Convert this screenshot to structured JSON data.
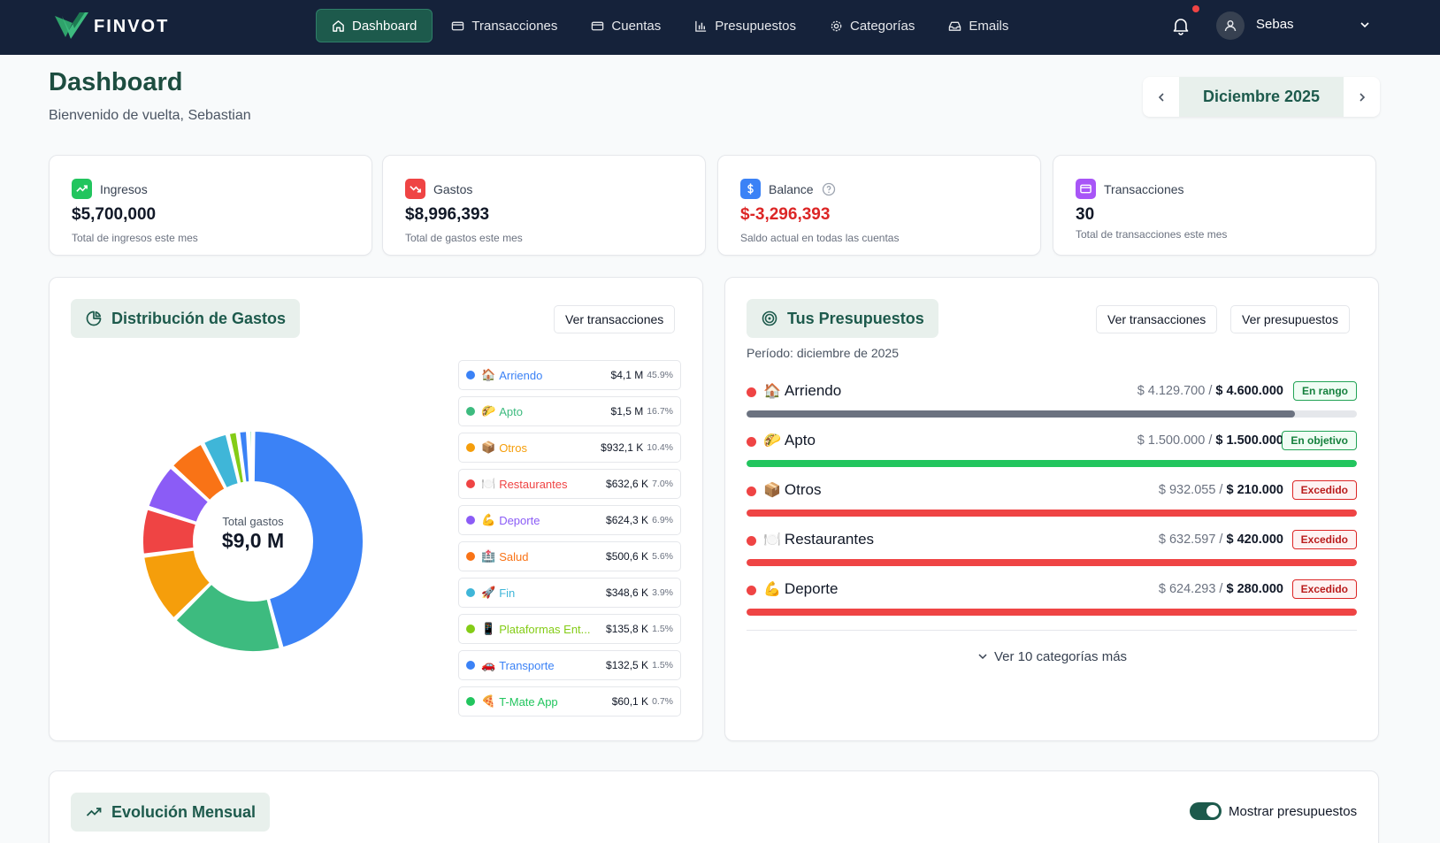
{
  "brand": {
    "name": "FINVOT"
  },
  "nav": {
    "items": [
      {
        "label": "Dashboard",
        "icon": "home-icon",
        "active": true
      },
      {
        "label": "Transacciones",
        "icon": "card-icon"
      },
      {
        "label": "Cuentas",
        "icon": "wallet-icon"
      },
      {
        "label": "Presupuestos",
        "icon": "bar-chart-icon"
      },
      {
        "label": "Categorías",
        "icon": "gear-icon"
      },
      {
        "label": "Emails",
        "icon": "inbox-icon"
      }
    ],
    "user": "Sebas"
  },
  "header": {
    "title": "Dashboard",
    "subtitle": "Bienvenido de vuelta, Sebastian",
    "month": "Diciembre 2025"
  },
  "stats": [
    {
      "label": "Ingresos",
      "value": "$5,700,000",
      "desc": "Total de ingresos este mes",
      "color": "#22c55e",
      "icon": "trending-up-icon"
    },
    {
      "label": "Gastos",
      "value": "$8,996,393",
      "desc": "Total de gastos este mes",
      "color": "#ef4444",
      "icon": "trending-down-icon"
    },
    {
      "label": "Balance",
      "value": "$-3,296,393",
      "desc": "Saldo actual en todas las cuentas",
      "color": "#3b82f6",
      "icon": "dollar-icon",
      "value_color": "#dc2626"
    },
    {
      "label": "Transacciones",
      "value": "30",
      "desc": "Total de transacciones este mes",
      "color": "#a855f7",
      "icon": "card-icon"
    }
  ],
  "distribution": {
    "title": "Distribución de Gastos",
    "button": "Ver transacciones",
    "center_label": "Total gastos",
    "center_value": "$9,0 M",
    "items": [
      {
        "emoji": "🏠",
        "name": "Arriendo",
        "value": "$4,1 M",
        "pct": "45.9%",
        "share": 45.9,
        "color": "#3b82f6"
      },
      {
        "emoji": "🌮",
        "name": "Apto",
        "value": "$1,5 M",
        "pct": "16.7%",
        "share": 16.7,
        "color": "#3dbb7f"
      },
      {
        "emoji": "📦",
        "name": "Otros",
        "value": "$932,1 K",
        "pct": "10.4%",
        "share": 10.4,
        "color": "#f59e0b"
      },
      {
        "emoji": "🍽️",
        "name": "Restaurantes",
        "value": "$632,6 K",
        "pct": "7.0%",
        "share": 7.0,
        "color": "#ef4444"
      },
      {
        "emoji": "💪",
        "name": "Deporte",
        "value": "$624,3 K",
        "pct": "6.9%",
        "share": 6.9,
        "color": "#8b5cf6"
      },
      {
        "emoji": "🏥",
        "name": "Salud",
        "value": "$500,6 K",
        "pct": "5.6%",
        "share": 5.6,
        "color": "#f97316"
      },
      {
        "emoji": "🚀",
        "name": "Fin",
        "value": "$348,6 K",
        "pct": "3.9%",
        "share": 3.9,
        "color": "#3fb6d8"
      },
      {
        "emoji": "📱",
        "name": "Plataformas Ent...",
        "value": "$135,8 K",
        "pct": "1.5%",
        "share": 1.5,
        "color": "#84cc16"
      },
      {
        "emoji": "🚗",
        "name": "Transporte",
        "value": "$132,5 K",
        "pct": "1.5%",
        "share": 1.5,
        "color": "#3b82f6"
      },
      {
        "emoji": "🍕",
        "name": "T-Mate App",
        "value": "$60,1 K",
        "pct": "0.7%",
        "share": 0.7,
        "color": "#22c55e"
      }
    ]
  },
  "budgets": {
    "title": "Tus Presupuestos",
    "btn_transactions": "Ver transacciones",
    "btn_budgets": "Ver presupuestos",
    "period": "Período: diciembre de 2025",
    "items": [
      {
        "emoji": "🏠",
        "name": "Arriendo",
        "spent": "$ 4.129.700",
        "limit": "$ 4.600.000",
        "status": "En rango",
        "tag": "green",
        "progress": 0.898,
        "bar_color": "#6b7280"
      },
      {
        "emoji": "🌮",
        "name": "Apto",
        "spent": "$ 1.500.000",
        "limit": "$ 1.500.000",
        "status": "En objetivo",
        "tag": "green",
        "progress": 1.0,
        "bar_color": "#22c55e"
      },
      {
        "emoji": "📦",
        "name": "Otros",
        "spent": "$ 932.055",
        "limit": "$ 210.000",
        "status": "Excedido",
        "tag": "red",
        "progress": 1.0,
        "bar_color": "#ef4444"
      },
      {
        "emoji": "🍽️",
        "name": "Restaurantes",
        "spent": "$ 632.597",
        "limit": "$ 420.000",
        "status": "Excedido",
        "tag": "red",
        "progress": 1.0,
        "bar_color": "#ef4444"
      },
      {
        "emoji": "💪",
        "name": "Deporte",
        "spent": "$ 624.293",
        "limit": "$ 280.000",
        "status": "Excedido",
        "tag": "red",
        "progress": 1.0,
        "bar_color": "#ef4444"
      }
    ],
    "more": "Ver 10 categorías más"
  },
  "evolution": {
    "title": "Evolución Mensual",
    "toggle_label": "Mostrar presupuestos",
    "toggle_on": true
  }
}
